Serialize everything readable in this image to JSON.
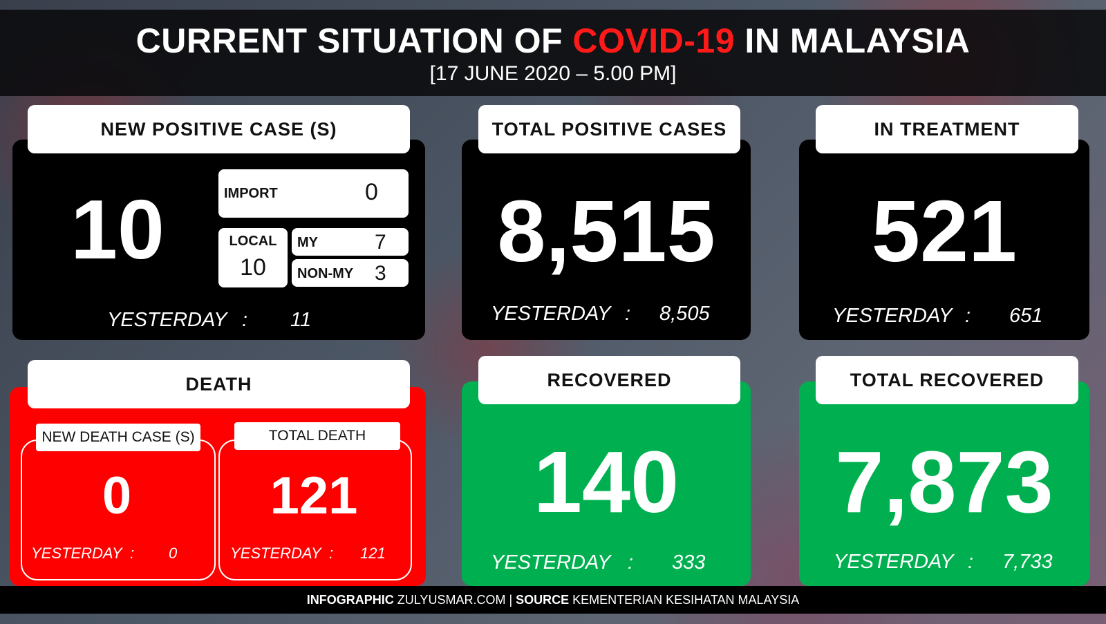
{
  "title": {
    "part1": "CURRENT SITUATION OF ",
    "highlight": "COVID-19",
    "part2": " IN MALAYSIA",
    "date": "[17 JUNE 2020 – 5.00 PM]"
  },
  "colors": {
    "accent_red": "#ff1a1a",
    "panel_red": "#ff0000",
    "panel_green": "#00b050",
    "panel_black": "#000000"
  },
  "new_cases": {
    "header": "NEW POSITIVE CASE (S)",
    "value": "10",
    "import_label": "IMPORT",
    "import_value": "0",
    "local_label": "LOCAL",
    "local_value": "10",
    "my_label": "MY",
    "my_value": "7",
    "nonmy_label": "NON-MY",
    "nonmy_value": "3",
    "yesterday_label": "YESTERDAY",
    "colon": ":",
    "yesterday_value": "11"
  },
  "total_positive": {
    "header": "TOTAL POSITIVE CASES",
    "value": "8,515",
    "yesterday_label": "YESTERDAY",
    "colon": ":",
    "yesterday_value": "8,505"
  },
  "in_treatment": {
    "header": "IN TREATMENT",
    "value": "521",
    "yesterday_label": "YESTERDAY",
    "colon": ":",
    "yesterday_value": "651"
  },
  "death": {
    "header": "DEATH",
    "new_header": "NEW DEATH CASE (S)",
    "new_value": "0",
    "new_yesterday_label": "YESTERDAY",
    "new_colon": ":",
    "new_yesterday_value": "0",
    "total_header": "TOTAL DEATH",
    "total_value": "121",
    "total_yesterday_label": "YESTERDAY",
    "total_colon": ":",
    "total_yesterday_value": "121"
  },
  "recovered": {
    "header": "RECOVERED",
    "value": "140",
    "yesterday_label": "YESTERDAY",
    "colon": ":",
    "yesterday_value": "333"
  },
  "total_recovered": {
    "header": "TOTAL RECOVERED",
    "value": "7,873",
    "yesterday_label": "YESTERDAY",
    "colon": ":",
    "yesterday_value": "7,733"
  },
  "footer": {
    "label1": "INFOGRAPHIC",
    "text1": " ZULYUSMAR.COM | ",
    "label2": "SOURCE",
    "text2": " KEMENTERIAN KESIHATAN MALAYSIA"
  }
}
